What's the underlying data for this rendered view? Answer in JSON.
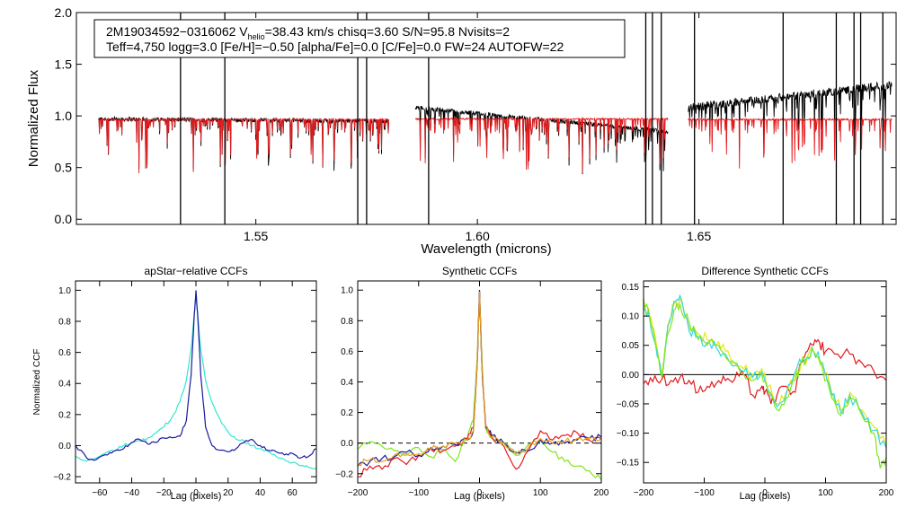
{
  "colors": {
    "observed": "#000000",
    "model": "#e31a1c",
    "ccf_primary": "#1a1aa0",
    "ccf_secondary": "#33e6d0",
    "diff_red": "#e31a1c",
    "diff_green": "#7fe61a",
    "diff_yellow": "#e6e61a",
    "diff_cyan": "#33d6e6"
  },
  "chart_data": [
    {
      "type": "line",
      "id": "spectrum",
      "title": "",
      "xlabel": "Wavelength (microns)",
      "ylabel": "Normalized Flux",
      "xlim": [
        1.5095,
        1.6945
      ],
      "ylim": [
        -0.05,
        2.0
      ],
      "xticks": [
        1.55,
        1.6,
        1.65
      ],
      "xtick_labels": [
        "1.55",
        "1.60",
        "1.65"
      ],
      "yticks": [
        0.0,
        0.5,
        1.0,
        1.5,
        2.0
      ],
      "ytick_labels": [
        "0.0",
        "0.5",
        "1.0",
        "1.5",
        "2.0"
      ],
      "info": {
        "star_id": "2M19034592−0316062",
        "vhelio_prefix": "V",
        "vhelio_sub": "helio",
        "vhelio_value": "=38.43 km/s",
        "chisq": "chisq=3.60",
        "snr": "S/N=95.8",
        "nvisits": "Nvisits=2",
        "params_line": "Teff=4,750 logg=3.0 [Fe/H]=−0.50 [alpha/Fe]=0.0 [C/Fe]=0.0 FW=24 AUTOFW=22"
      },
      "chips": [
        {
          "name": "blue",
          "x_range": [
            1.5145,
            1.58
          ],
          "observed_level": [
            0.97,
            0.95
          ],
          "model_level": 0.965
        },
        {
          "name": "green",
          "x_range": [
            1.586,
            1.643
          ],
          "observed_level": [
            1.08,
            0.85
          ],
          "model_level": 0.97
        },
        {
          "name": "red",
          "x_range": [
            1.6475,
            1.6935
          ],
          "observed_level": [
            1.08,
            1.3
          ],
          "model_level": 0.965
        }
      ],
      "spike_lines": [
        1.533,
        1.543,
        1.573,
        1.575,
        1.589,
        1.638,
        1.6395,
        1.6415,
        1.649,
        1.669,
        1.681,
        1.685,
        1.6865,
        1.6915
      ]
    },
    {
      "type": "line",
      "id": "apstar-ccf",
      "title": "apStar−relative CCFs",
      "xlabel": "Lag (pixels)",
      "ylabel": "Normalized CCF",
      "xlim": [
        -75,
        75
      ],
      "ylim": [
        -0.24,
        1.06
      ],
      "xticks": [
        -60,
        -40,
        -20,
        0,
        20,
        40,
        60
      ],
      "xtick_labels": [
        "−60",
        "−40",
        "−20",
        "0",
        "20",
        "40",
        "60"
      ],
      "yticks": [
        -0.2,
        0.0,
        0.2,
        0.4,
        0.6,
        0.8,
        1.0
      ],
      "ytick_labels": [
        "−0.2",
        "0.0",
        "0.2",
        "0.4",
        "0.6",
        "0.8",
        "1.0"
      ],
      "series": [
        {
          "name": "cyan",
          "color": "#33e6d0",
          "x": [
            -75,
            -68,
            -62,
            -55,
            -50,
            -45,
            -40,
            -35,
            -30,
            -25,
            -20,
            -15,
            -10,
            -6,
            -3,
            -1,
            0,
            1,
            3,
            6,
            10,
            15,
            20,
            25,
            30,
            35,
            40,
            45,
            50,
            55,
            60,
            65,
            70,
            75
          ],
          "y": [
            -0.07,
            -0.1,
            -0.08,
            -0.04,
            -0.03,
            0.0,
            0.02,
            0.03,
            0.05,
            0.08,
            0.12,
            0.18,
            0.28,
            0.42,
            0.62,
            0.85,
            0.97,
            0.85,
            0.62,
            0.42,
            0.28,
            0.17,
            0.09,
            0.04,
            0.03,
            0.0,
            -0.02,
            -0.04,
            -0.07,
            -0.09,
            -0.11,
            -0.13,
            -0.14,
            -0.15
          ]
        },
        {
          "name": "navy",
          "color": "#1a1aa0",
          "x": [
            -75,
            -68,
            -62,
            -55,
            -50,
            -45,
            -40,
            -35,
            -30,
            -25,
            -20,
            -15,
            -10,
            -6,
            -3,
            -1,
            0,
            1,
            3,
            6,
            10,
            15,
            20,
            25,
            30,
            35,
            40,
            45,
            50,
            55,
            60,
            65,
            70,
            75
          ],
          "y": [
            0.0,
            -0.08,
            -0.09,
            -0.06,
            -0.03,
            -0.02,
            0.02,
            0.04,
            0.01,
            0.02,
            0.05,
            0.05,
            0.06,
            0.16,
            0.45,
            0.85,
            1.0,
            0.85,
            0.45,
            0.12,
            0.0,
            -0.03,
            -0.04,
            -0.02,
            0.02,
            0.04,
            0.0,
            -0.03,
            -0.04,
            -0.06,
            -0.05,
            -0.08,
            -0.07,
            -0.02
          ]
        }
      ]
    },
    {
      "type": "line",
      "id": "synthetic-ccf",
      "title": "Synthetic CCFs",
      "xlabel": "Lag (pixels)",
      "ylabel": "",
      "xlim": [
        -200,
        200
      ],
      "ylim": [
        -0.26,
        1.06
      ],
      "xticks": [
        -200,
        -100,
        0,
        100,
        200
      ],
      "xtick_labels": [
        "−200",
        "−100",
        "0",
        "100",
        "200"
      ],
      "yticks": [
        -0.2,
        0.0,
        0.2,
        0.4,
        0.6,
        0.8,
        1.0
      ],
      "ytick_labels": [
        "−0.2",
        "0.0",
        "0.2",
        "0.4",
        "0.6",
        "0.8",
        "1.0"
      ],
      "reference_line": 0.0,
      "series": [
        {
          "name": "green",
          "color": "#7fe61a",
          "x": [
            -200,
            -180,
            -160,
            -140,
            -120,
            -100,
            -80,
            -60,
            -40,
            -20,
            -10,
            -4,
            0,
            4,
            10,
            20,
            40,
            60,
            80,
            100,
            120,
            140,
            160,
            180,
            200
          ],
          "y": [
            -0.04,
            0.01,
            -0.02,
            -0.05,
            -0.08,
            -0.03,
            -0.09,
            -0.04,
            -0.12,
            0.03,
            0.15,
            0.55,
            0.98,
            0.55,
            0.1,
            0.03,
            0.0,
            -0.08,
            -0.01,
            0.02,
            -0.06,
            -0.12,
            -0.15,
            -0.18,
            -0.24
          ]
        },
        {
          "name": "red",
          "color": "#e31a1c",
          "x": [
            -200,
            -180,
            -160,
            -140,
            -120,
            -100,
            -80,
            -60,
            -40,
            -20,
            -10,
            -4,
            0,
            4,
            10,
            20,
            40,
            60,
            80,
            100,
            120,
            140,
            160,
            180,
            200
          ],
          "y": [
            -0.22,
            -0.15,
            -0.17,
            -0.1,
            -0.14,
            -0.08,
            -0.04,
            -0.05,
            -0.02,
            0.03,
            0.1,
            0.5,
            1.0,
            0.5,
            0.1,
            0.04,
            -0.02,
            -0.17,
            -0.05,
            0.08,
            0.02,
            0.05,
            0.07,
            0.02,
            0.03
          ]
        },
        {
          "name": "navy",
          "color": "#1a1aa0",
          "x": [
            -200,
            -180,
            -160,
            -140,
            -120,
            -100,
            -80,
            -60,
            -40,
            -20,
            -10,
            -4,
            0,
            4,
            10,
            20,
            40,
            60,
            80,
            100,
            120,
            140,
            160,
            180,
            200
          ],
          "y": [
            -0.15,
            -0.12,
            -0.1,
            -0.09,
            -0.06,
            -0.08,
            -0.03,
            -0.02,
            -0.01,
            0.02,
            0.08,
            0.5,
            1.0,
            0.5,
            0.12,
            0.05,
            0.0,
            -0.06,
            -0.05,
            0.02,
            0.0,
            0.0,
            0.02,
            0.03,
            0.04
          ]
        },
        {
          "name": "orange",
          "color": "#e6a01a",
          "x": [
            -200,
            -180,
            -160,
            -140,
            -120,
            -100,
            -80,
            -60,
            -40,
            -20,
            -10,
            -4,
            0,
            4,
            10,
            20,
            40,
            60,
            80,
            100,
            120,
            140,
            160,
            180,
            200
          ],
          "y": [
            -0.14,
            -0.11,
            -0.12,
            -0.08,
            -0.07,
            -0.07,
            -0.04,
            -0.02,
            0.0,
            0.02,
            0.08,
            0.5,
            0.99,
            0.5,
            0.11,
            0.04,
            0.0,
            -0.07,
            -0.03,
            0.03,
            0.0,
            0.01,
            0.03,
            0.03,
            0.03
          ]
        }
      ]
    },
    {
      "type": "line",
      "id": "difference-ccf",
      "title": "Difference Synthetic CCFs",
      "xlabel": "Lag (pixels)",
      "ylabel": "",
      "xlim": [
        -200,
        200
      ],
      "ylim": [
        -0.185,
        0.16
      ],
      "xticks": [
        -200,
        -100,
        0,
        100,
        200
      ],
      "xtick_labels": [
        "−200",
        "−100",
        "0",
        "100",
        "200"
      ],
      "yticks": [
        -0.15,
        -0.1,
        -0.05,
        0.0,
        0.05,
        0.1,
        0.15
      ],
      "ytick_labels": [
        "−0.15",
        "−0.10",
        "−0.05",
        "0.00",
        "0.05",
        "0.10",
        "0.15"
      ],
      "reference_line": 0.0,
      "series": [
        {
          "name": "red",
          "color": "#e31a1c",
          "x": [
            -200,
            -185,
            -170,
            -155,
            -140,
            -125,
            -110,
            -95,
            -80,
            -65,
            -50,
            -35,
            -20,
            -5,
            0,
            10,
            20,
            35,
            50,
            60,
            70,
            80,
            90,
            100,
            120,
            140,
            160,
            180,
            200
          ],
          "y": [
            -0.015,
            -0.012,
            -0.008,
            -0.01,
            -0.005,
            -0.01,
            -0.03,
            -0.02,
            -0.015,
            -0.01,
            -0.008,
            0.0,
            -0.035,
            -0.02,
            -0.03,
            -0.05,
            -0.035,
            -0.02,
            -0.03,
            0.02,
            0.04,
            0.05,
            0.055,
            0.04,
            0.035,
            0.035,
            0.02,
            0.005,
            -0.01
          ]
        },
        {
          "name": "yellow",
          "color": "#e6e61a",
          "x": [
            -200,
            -190,
            -180,
            -170,
            -160,
            -150,
            -140,
            -125,
            -110,
            -95,
            -80,
            -65,
            -50,
            -35,
            -20,
            -5,
            5,
            20,
            35,
            50,
            60,
            70,
            80,
            95,
            110,
            125,
            140,
            160,
            180,
            200
          ],
          "y": [
            0.12,
            0.1,
            0.06,
            0.0,
            0.08,
            0.12,
            0.13,
            0.08,
            0.07,
            0.06,
            0.05,
            0.04,
            0.02,
            0.01,
            0.0,
            0.01,
            -0.02,
            -0.05,
            -0.03,
            0.0,
            0.02,
            0.03,
            0.04,
            0.02,
            -0.03,
            -0.06,
            -0.03,
            -0.06,
            -0.09,
            -0.12
          ]
        },
        {
          "name": "cyan",
          "color": "#33d6e6",
          "x": [
            -200,
            -190,
            -180,
            -170,
            -160,
            -150,
            -140,
            -125,
            -110,
            -95,
            -80,
            -65,
            -50,
            -35,
            -20,
            -5,
            5,
            20,
            35,
            50,
            60,
            70,
            80,
            95,
            110,
            125,
            140,
            160,
            180,
            200
          ],
          "y": [
            0.11,
            0.095,
            0.05,
            -0.005,
            0.085,
            0.125,
            0.135,
            0.075,
            0.065,
            0.055,
            0.045,
            0.035,
            0.015,
            0.005,
            -0.005,
            0.005,
            -0.025,
            -0.055,
            -0.035,
            0.005,
            0.02,
            0.03,
            0.04,
            0.02,
            -0.035,
            -0.065,
            -0.035,
            -0.065,
            -0.095,
            -0.125
          ]
        },
        {
          "name": "green",
          "color": "#7fe61a",
          "x": [
            -200,
            -190,
            -180,
            -170,
            -160,
            -150,
            -140,
            -125,
            -110,
            -95,
            -80,
            -65,
            -50,
            -35,
            -20,
            -5,
            5,
            20,
            35,
            50,
            60,
            70,
            80,
            95,
            110,
            125,
            140,
            160,
            180,
            190,
            200
          ],
          "y": [
            0.13,
            0.1,
            0.05,
            -0.005,
            0.07,
            0.11,
            0.12,
            0.09,
            0.06,
            0.05,
            0.05,
            0.03,
            0.02,
            0.0,
            -0.01,
            0.0,
            -0.03,
            -0.06,
            -0.04,
            -0.01,
            0.02,
            0.03,
            0.04,
            0.01,
            -0.04,
            -0.07,
            -0.04,
            -0.07,
            -0.1,
            -0.16,
            -0.14
          ]
        }
      ]
    }
  ]
}
